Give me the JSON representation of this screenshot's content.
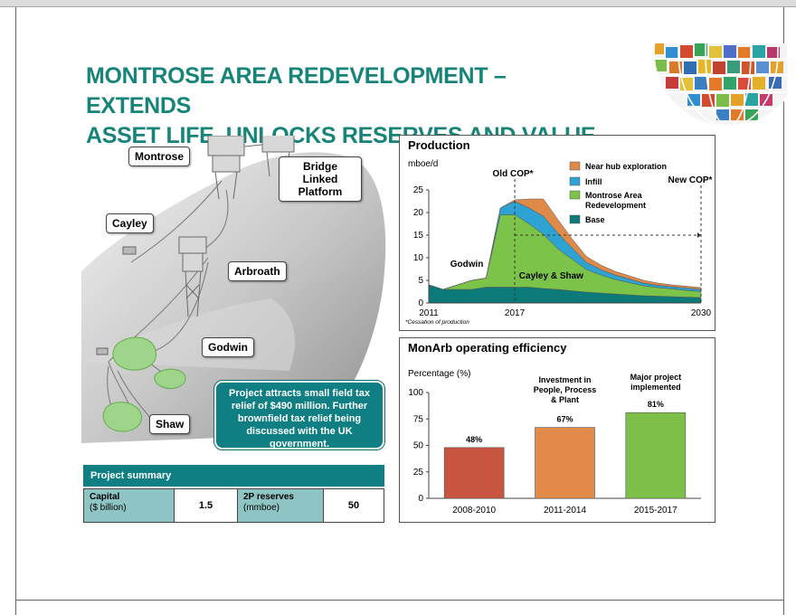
{
  "title_lines": [
    "MONTROSE AREA REDEVELOPMENT – EXTENDS",
    "ASSET LIFE, UNLOCKS RESERVES AND VALUE"
  ],
  "map": {
    "labels": {
      "montrose": "Montrose",
      "bridge": "Bridge Linked Platform",
      "cayley": "Cayley",
      "arbroath": "Arbroath",
      "godwin": "Godwin",
      "shaw": "Shaw"
    },
    "callout": "Project attracts small field tax relief of $490 million. Further brownfield tax relief being discussed with the UK government."
  },
  "summary": {
    "header": "Project summary",
    "capital_label": "Capital",
    "capital_unit": "($ billion)",
    "capital_value": "1.5",
    "reserves_label": "2P reserves",
    "reserves_unit": "(mmboe)",
    "reserves_value": "50"
  },
  "production": {
    "title": "Production",
    "unit": "mboe/d",
    "footnote": "*Cessation of production",
    "annotations": {
      "old_cop": "Old COP*",
      "new_cop": "New COP*",
      "godwin": "Godwin",
      "cayley_shaw": "Cayley & Shaw"
    }
  },
  "efficiency": {
    "title": "MonArb operating efficiency",
    "ylabel": "Percentage (%)",
    "annotations": {
      "a1": "Investment in People, Process & Plant",
      "a2": "Major project implemented"
    }
  },
  "colors": {
    "teal": "#0f7f83",
    "title_green": "#17847a",
    "near_hub": "#e08a4a",
    "infill": "#2ea3d3",
    "redevelopment": "#7cc34a",
    "base": "#0b7a78",
    "bar_1": "#c8553f",
    "bar_2": "#e28a4a",
    "bar_3": "#7cc04a"
  },
  "chart_data": [
    {
      "type": "area",
      "title": "Production",
      "ylabel": "mboe/d",
      "x": [
        2011,
        2012,
        2013,
        2014,
        2015,
        2016,
        2017,
        2018,
        2019,
        2020,
        2021,
        2022,
        2023,
        2024,
        2025,
        2026,
        2027,
        2028,
        2029,
        2030
      ],
      "x_ticks": [
        2011,
        2017,
        2030
      ],
      "ylim": [
        0,
        25
      ],
      "y_ticks": [
        0,
        5,
        10,
        15,
        20,
        25
      ],
      "stacked": true,
      "series": [
        {
          "name": "Base",
          "color": "#0b7a78",
          "values": [
            4,
            3,
            3,
            3,
            3.5,
            3.5,
            3.5,
            3.5,
            3.2,
            3,
            2.7,
            2.4,
            2.2,
            2,
            1.8,
            1.6,
            1.5,
            1.4,
            1.3,
            1.2
          ]
        },
        {
          "name": "Montrose Area Redevelopment",
          "color": "#7cc34a",
          "values": [
            0,
            0,
            1,
            2,
            2,
            16,
            16,
            14,
            12,
            9,
            7,
            5,
            4,
            3.2,
            2.7,
            2.2,
            1.9,
            1.7,
            1.5,
            1.3
          ]
        },
        {
          "name": "Infill",
          "color": "#2ea3d3",
          "values": [
            0,
            0,
            0,
            0,
            0,
            1.5,
            3,
            3.5,
            4,
            3.5,
            2.5,
            1.6,
            1.2,
            1,
            0.8,
            0.6,
            0.5,
            0.5,
            0.5,
            0.5
          ]
        },
        {
          "name": "Near hub exploration",
          "color": "#e08a4a",
          "values": [
            0,
            0,
            0,
            0,
            0,
            0,
            0.3,
            2,
            3.8,
            3,
            2,
            1.3,
            1,
            0.8,
            0.7,
            0.6,
            0.5,
            0.4,
            0.4,
            0.4
          ]
        }
      ],
      "legend_order": [
        "Near hub exploration",
        "Infill",
        "Montrose Area Redevelopment",
        "Base"
      ],
      "legend_position": "top-right",
      "grid": false,
      "markers": [
        {
          "x": 2017,
          "label": "Old COP*"
        },
        {
          "x": 2030,
          "label": "New COP*"
        }
      ]
    },
    {
      "type": "bar",
      "title": "MonArb operating efficiency",
      "ylabel": "Percentage (%)",
      "categories": [
        "2008-2010",
        "2011-2014",
        "2015-2017"
      ],
      "values": [
        48,
        67,
        81
      ],
      "value_labels": [
        "48%",
        "67%",
        "81%"
      ],
      "colors": [
        "#c8553f",
        "#e28a4a",
        "#7cc04a"
      ],
      "ylim": [
        0,
        100
      ],
      "y_ticks": [
        0,
        25,
        50,
        75,
        100
      ],
      "grid": false
    }
  ]
}
